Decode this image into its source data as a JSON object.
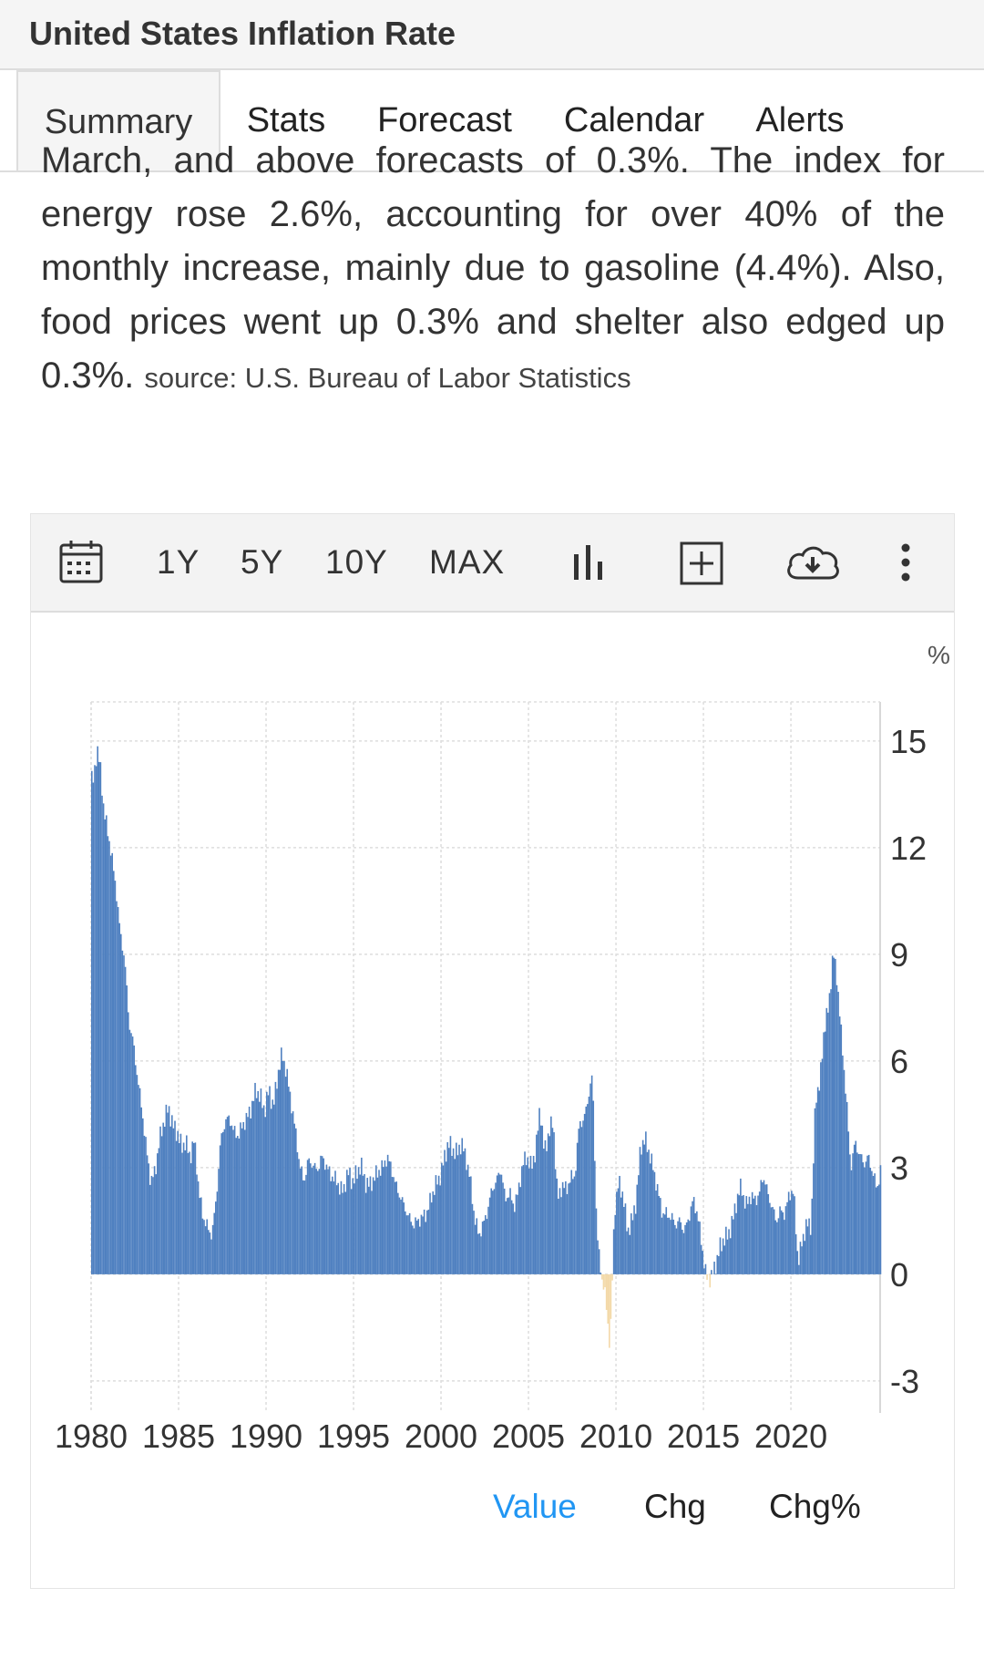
{
  "header": {
    "title": "United States Inflation Rate"
  },
  "tabs": [
    {
      "label": "Summary",
      "active": true
    },
    {
      "label": "Stats",
      "active": false
    },
    {
      "label": "Forecast",
      "active": false
    },
    {
      "label": "Calendar",
      "active": false
    },
    {
      "label": "Alerts",
      "active": false
    }
  ],
  "summary": {
    "text": "March, and above forecasts of 0.3%. The index for energy rose 2.6%, accounting for over 40% of the monthly increase, mainly due to gasoline (4.4%). Also, food prices went up 0.3% and shelter also edged up 0.3%.",
    "source": "source: U.S. Bureau of Labor Statistics"
  },
  "toolbar": {
    "calendar_icon": "calendar-icon",
    "ranges": [
      "1Y",
      "5Y",
      "10Y",
      "MAX"
    ],
    "chart_type_icon": "bar-chart-icon",
    "compare_icon": "plus-box-icon",
    "download_icon": "cloud-download-icon",
    "more_icon": "more-vertical-icon"
  },
  "legend_buttons": [
    {
      "label": "Value",
      "active": true
    },
    {
      "label": "Chg",
      "active": false
    },
    {
      "label": "Chg%",
      "active": false
    }
  ],
  "colors": {
    "positive_bar": "#4f80c0",
    "negative_bar": "#f3d9a8",
    "active_legend": "#2196f3"
  },
  "chart_data": {
    "type": "bar",
    "unit": "%",
    "xlabel": "",
    "ylabel": "",
    "x_ticks": [
      "1980",
      "1985",
      "1990",
      "1995",
      "2000",
      "2005",
      "2010",
      "2015",
      "2020"
    ],
    "y_ticks": [
      "15",
      "12",
      "9",
      "6",
      "3",
      "0",
      "-3"
    ],
    "xlim": [
      1980,
      2025.1
    ],
    "ylim": [
      -3.9,
      16.1
    ],
    "grid": true,
    "frequency": "monthly (approx. annual anchors shown)",
    "series": [
      {
        "values_by_year": {
          "1980": [
            13.9,
            14.8,
            14.2,
            13.0,
            12.5
          ],
          "1981": [
            11.8,
            10.9,
            9.6,
            8.9
          ],
          "1982": [
            7.1,
            6.5,
            5.5,
            4.6
          ],
          "1983": [
            3.5,
            2.6,
            2.9,
            3.8
          ],
          "1984": [
            4.3,
            4.7,
            4.2,
            4.0
          ],
          "1985": [
            3.6,
            3.7,
            3.3,
            3.8
          ],
          "1986": [
            2.3,
            1.6,
            1.3,
            1.1
          ],
          "1987": [
            2.2,
            3.8,
            4.3,
            4.4
          ],
          "1988": [
            4.0,
            3.9,
            4.2,
            4.4
          ],
          "1989": [
            4.7,
            5.2,
            5.0,
            4.6
          ],
          "1990": [
            5.2,
            4.7,
            5.6,
            6.2
          ],
          "1991": [
            5.7,
            4.9,
            4.1,
            3.1
          ],
          "1992": [
            2.6,
            3.2,
            3.1,
            2.9
          ],
          "1993": [
            3.3,
            3.1,
            2.8,
            2.7
          ],
          "1994": [
            2.5,
            2.3,
            2.9,
            2.6
          ],
          "1995": [
            2.8,
            3.1,
            2.6,
            2.5
          ],
          "1996": [
            2.7,
            2.9,
            3.0,
            3.3
          ],
          "1997": [
            3.0,
            2.5,
            2.2,
            1.9
          ],
          "1998": [
            1.6,
            1.4,
            1.5,
            1.6
          ],
          "1999": [
            1.7,
            2.1,
            2.5,
            2.7
          ],
          "2000": [
            3.2,
            3.7,
            3.5,
            3.4
          ],
          "2001": [
            3.7,
            3.3,
            2.7,
            1.6
          ],
          "2002": [
            1.1,
            1.4,
            1.8,
            2.4
          ],
          "2003": [
            2.6,
            3.0,
            2.1,
            2.3
          ],
          "2004": [
            1.9,
            2.3,
            3.1,
            3.3
          ],
          "2005": [
            3.0,
            3.5,
            4.7,
            3.4
          ],
          "2006": [
            4.0,
            4.3,
            2.1,
            2.5
          ],
          "2007": [
            2.4,
            2.7,
            2.8,
            4.3
          ],
          "2008": [
            4.3,
            5.0,
            5.6,
            1.1
          ],
          "2009": [
            0.0,
            -0.7,
            -2.1,
            1.8
          ],
          "2010": [
            2.6,
            2.2,
            1.2,
            1.5
          ],
          "2011": [
            2.1,
            3.6,
            3.8,
            3.4
          ],
          "2012": [
            2.9,
            2.3,
            1.7,
            1.7
          ],
          "2013": [
            1.6,
            1.4,
            1.5,
            1.2
          ],
          "2014": [
            1.6,
            2.1,
            1.7,
            0.8
          ],
          "2015": [
            -0.1,
            -0.1,
            0.2,
            0.7
          ],
          "2016": [
            1.0,
            1.1,
            1.5,
            2.1
          ],
          "2017": [
            2.5,
            1.9,
            2.2,
            2.1
          ],
          "2018": [
            2.2,
            2.8,
            2.3,
            1.9
          ],
          "2019": [
            1.5,
            1.8,
            1.7,
            2.3
          ],
          "2020": [
            2.3,
            0.3,
            1.0,
            1.4
          ],
          "2021": [
            1.4,
            5.0,
            5.4,
            7.0
          ],
          "2022": [
            7.5,
            9.1,
            8.2,
            6.5
          ],
          "2023": [
            5.0,
            3.0,
            3.7,
            3.4
          ],
          "2024": [
            3.1,
            3.3,
            2.9,
            2.4
          ],
          "2025": [
            3.0
          ]
        }
      }
    ]
  }
}
